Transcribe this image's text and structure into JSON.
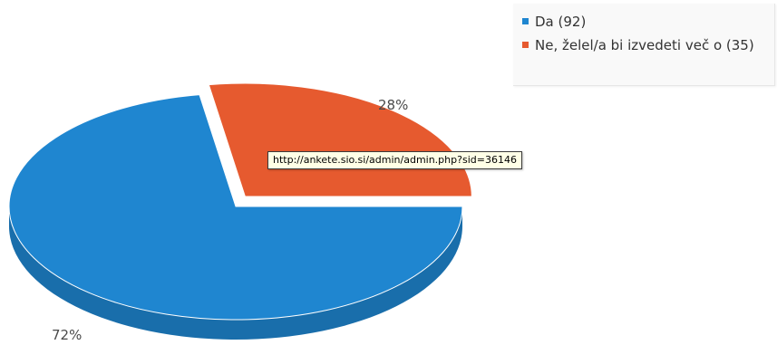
{
  "chart_data": {
    "type": "pie",
    "categories": [
      "Da (92)",
      "Ne, želel/a bi izvedeti več o (35)"
    ],
    "values": [
      92,
      35
    ],
    "percent_labels": [
      "72%",
      "28%"
    ],
    "colors": [
      "#1f86d0",
      "#e65a2f"
    ],
    "legend_position": "top-right",
    "exploded_slice": 1
  },
  "legend": {
    "items": [
      {
        "label": "Da (92)",
        "color": "#1f86d0"
      },
      {
        "label": "Ne, želel/a bi izvedeti več o (35)",
        "color": "#e65a2f"
      }
    ]
  },
  "tooltip": {
    "text": "http://ankete.sio.si/admin/admin.php?sid=36146"
  }
}
